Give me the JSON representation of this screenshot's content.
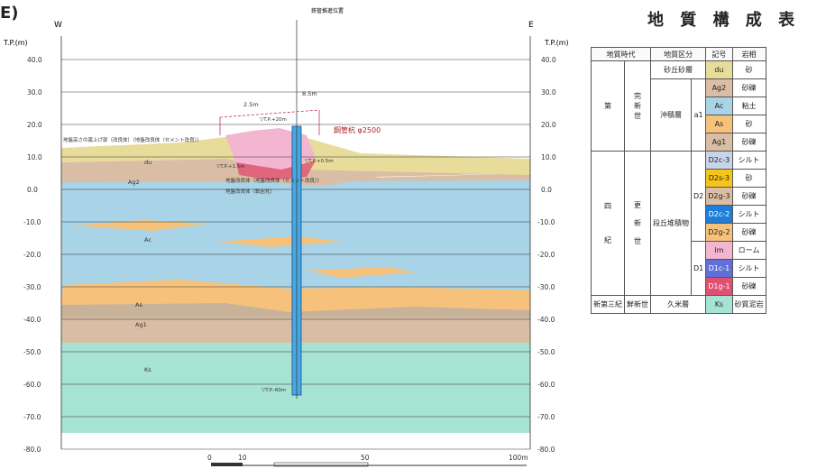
{
  "corner_text": "E)",
  "section": {
    "top_label": "鉄管推進位置",
    "west": "W",
    "east": "E",
    "axis_unit": "T.P.(m)",
    "elevations": [
      "40.0",
      "30.0",
      "20.0",
      "10.0",
      "0.0",
      "-10.0",
      "-20.0",
      "-30.0",
      "-40.0",
      "-50.0",
      "-60.0",
      "-70.0",
      "-80.0"
    ],
    "dim_left": "2.5m",
    "dim_right": "8.5m",
    "pile_top": "▽T.P.+20m",
    "pile_label": "鋼管杭 φ2500",
    "note_left": "地盤高さの嵩上げ部（改良体）（地盤改良体（セメント改良））",
    "tp_left": "▽T.P.+1.5m",
    "tp_right": "▽T.P.+0.5m",
    "improve_label1": "地盤改良体（地盤改良体（セメント改良））",
    "improve_label2": "地盤改良体（軟岩化）",
    "pile_bottom": "▽T.P.-60m",
    "layer_labels": [
      "du",
      "Ag2",
      "Ac",
      "As",
      "Ag1",
      "Ks"
    ],
    "scale": [
      "0",
      "10",
      "50",
      "100m"
    ]
  },
  "legend_table": {
    "title": "地 質 構 成 表",
    "headers": [
      "地質時代",
      "地質区分",
      "記号",
      "岩相"
    ],
    "era": [
      "第",
      "四",
      "紀"
    ],
    "holocene": [
      "完",
      "新",
      "世"
    ],
    "pleistocene": [
      "更",
      "新",
      "世"
    ],
    "neogene_era": "新第三紀",
    "neogene_epoch": "鮮新世",
    "group_alluvial": "沖積層",
    "code_a1": "a1",
    "group_terrace": "段丘堆積物",
    "code_d2": "D2",
    "code_d1": "D1",
    "group_dune": "砂丘砂層",
    "group_ks": "久米層",
    "rows": [
      {
        "sym": "du",
        "rock": "砂",
        "color": "#e8dc9a"
      },
      {
        "sym": "Ag2",
        "rock": "砂礫",
        "color": "#d9bda4"
      },
      {
        "sym": "Ac",
        "rock": "粘土",
        "color": "#a9d3e6"
      },
      {
        "sym": "As",
        "rock": "砂",
        "color": "#f6c27b"
      },
      {
        "sym": "Ag1",
        "rock": "砂礫",
        "color": "#d9bda4"
      },
      {
        "sym": "D2c-3",
        "rock": "シルト",
        "color": "#c8d4ea"
      },
      {
        "sym": "D2s-3",
        "rock": "砂",
        "color": "#f5c518"
      },
      {
        "sym": "D2g-3",
        "rock": "砂礫",
        "color": "#d9bda4"
      },
      {
        "sym": "D2c-2",
        "rock": "シルト",
        "color": "#1e7ed8"
      },
      {
        "sym": "D2g-2",
        "rock": "砂礫",
        "color": "#f6c27b"
      },
      {
        "sym": "lm",
        "rock": "ローム",
        "color": "#f2b6d0"
      },
      {
        "sym": "D1c-1",
        "rock": "シルト",
        "color": "#6070d8"
      },
      {
        "sym": "D1g-1",
        "rock": "砂礫",
        "color": "#e05070"
      },
      {
        "sym": "Ks",
        "rock": "砂質泥岩",
        "color": "#a7e3d3"
      }
    ]
  }
}
